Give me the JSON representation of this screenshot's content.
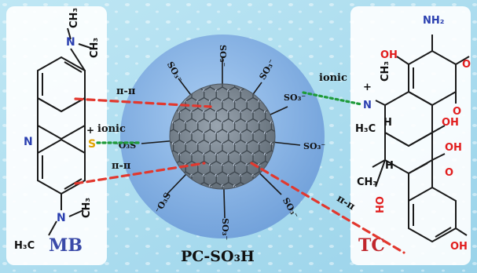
{
  "center": {
    "name": "PC-SO₃H",
    "groups": [
      "SO₃⁻",
      "SO₃⁻",
      "SO₃⁻",
      "SO₃⁻",
      "SO₃⁻",
      "⁻O₃S",
      "⁻O₃S",
      "SO₃⁻",
      "SO₃⁻"
    ]
  },
  "left_molecule": {
    "label": "MB",
    "atoms": {
      "N_top": "N",
      "CH3_a": "CH₃",
      "CH3_b": "CH₃",
      "N_ring": "N",
      "S_plus": "S",
      "plus": "+",
      "N_bottom": "N",
      "CH3_c": "CH₃",
      "H3C": "H₃C"
    }
  },
  "right_molecule": {
    "label": "TC",
    "atoms": {
      "NH2": "NH₂",
      "O_amide": "O",
      "OH1": "OH",
      "plus": "+",
      "N": "N",
      "CH3_n": "CH₃",
      "H3C_n": "H₃C",
      "H1": "H",
      "H2": "H",
      "O_ketone": "O",
      "OH2": "OH",
      "OH3": "OH",
      "O_ketone2": "O",
      "CH3": "CH₃",
      "HO": "HO",
      "OH4": "OH"
    }
  },
  "interactions": {
    "pi_top": "π-π",
    "ionic_left": "ionic",
    "pi_bottom": "π-π",
    "ionic_right": "ionic",
    "pi_right": "π-π"
  },
  "colors": {
    "mb_label": "#3a4aa8",
    "tc_label": "#c0262c",
    "pi_line": "#e2382e",
    "ionic_line": "#1f9b3a",
    "sphere_outer": "#8fb7e6",
    "sphere_inner": "#7d8a96",
    "tc_atom_red": "#e11d1d",
    "tc_atom_blue": "#2a3fb0"
  }
}
